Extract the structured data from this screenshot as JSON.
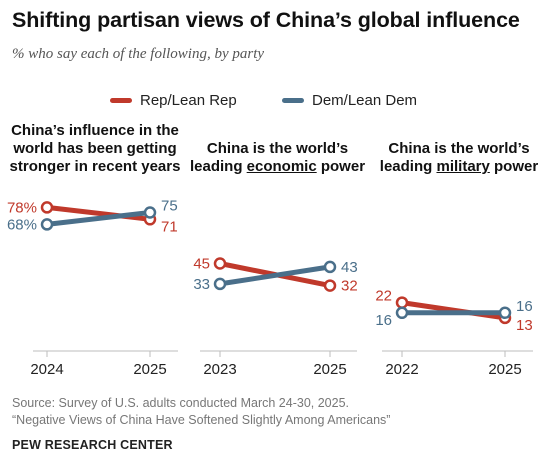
{
  "header": {
    "title": "Shifting partisan views of China’s global influence",
    "subtitle": "% who say each of the following, by party"
  },
  "legend": {
    "rep_label": "Rep/Lean Rep",
    "dem_label": "Dem/Lean Dem"
  },
  "colors": {
    "rep": "#c0392b",
    "dem": "#4a6f8a"
  },
  "panels": {
    "p0": {
      "line1": "China’s influence in the",
      "line2": "world has been getting",
      "line3": "stronger in recent years"
    },
    "p1": {
      "line1": "China is the world’s",
      "line2_pre": "leading ",
      "line2_u": "economic",
      "line2_post": " power"
    },
    "p2": {
      "line1": "China is the world’s",
      "line2_pre": "leading ",
      "line2_u": "military",
      "line2_post": " power"
    }
  },
  "chart_data": [
    {
      "type": "line",
      "title": "China’s influence in the world has been getting stronger in recent years",
      "x": [
        "2024",
        "2025"
      ],
      "series": [
        {
          "name": "Rep/Lean Rep",
          "values": [
            78,
            71
          ],
          "labels": [
            "78%",
            "71"
          ]
        },
        {
          "name": "Dem/Lean Dem",
          "values": [
            68,
            75
          ],
          "labels": [
            "68%",
            "75"
          ]
        }
      ]
    },
    {
      "type": "line",
      "title": "China is the world’s leading economic power",
      "x": [
        "2023",
        "2025"
      ],
      "series": [
        {
          "name": "Rep/Lean Rep",
          "values": [
            45,
            32
          ],
          "labels": [
            "45",
            "32"
          ]
        },
        {
          "name": "Dem/Lean Dem",
          "values": [
            33,
            43
          ],
          "labels": [
            "33",
            "43"
          ]
        }
      ]
    },
    {
      "type": "line",
      "title": "China is the world’s leading military power",
      "x": [
        "2022",
        "2025"
      ],
      "series": [
        {
          "name": "Rep/Lean Rep",
          "values": [
            22,
            13
          ],
          "labels": [
            "22",
            "13"
          ]
        },
        {
          "name": "Dem/Lean Dem",
          "values": [
            16,
            16
          ],
          "labels": [
            "16",
            "16"
          ]
        }
      ]
    }
  ],
  "footer": {
    "source": "Source: Survey of U.S. adults conducted March 24-30, 2025.",
    "report": "“Negative Views of China Have Softened Slightly Among Americans”",
    "org": "PEW RESEARCH CENTER"
  }
}
